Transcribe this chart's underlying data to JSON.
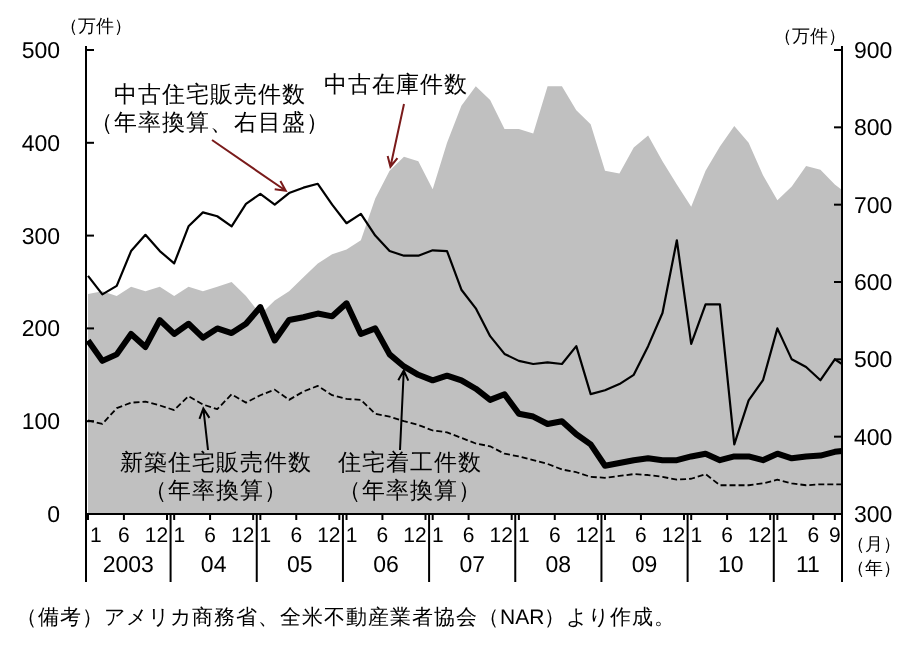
{
  "chart_data": {
    "type": "line",
    "ylabel": "（万件）",
    "y2label": "（万件）",
    "xlabel": "（月）",
    "x": [
      "2003-01",
      "2003-03",
      "2003-05",
      "2003-07",
      "2003-09",
      "2003-11",
      "2004-01",
      "2004-03",
      "2004-05",
      "2004-07",
      "2004-09",
      "2004-11",
      "2005-01",
      "2005-03",
      "2005-05",
      "2005-07",
      "2005-09",
      "2005-11",
      "2006-01",
      "2006-03",
      "2006-05",
      "2006-07",
      "2006-09",
      "2006-11",
      "2007-01",
      "2007-03",
      "2007-05",
      "2007-07",
      "2007-09",
      "2007-11",
      "2008-01",
      "2008-03",
      "2008-05",
      "2008-07",
      "2008-09",
      "2008-11",
      "2009-01",
      "2009-03",
      "2009-05",
      "2009-07",
      "2009-09",
      "2009-11",
      "2010-01",
      "2010-03",
      "2010-05",
      "2010-07",
      "2010-09",
      "2010-11",
      "2011-01",
      "2011-03",
      "2011-05",
      "2011-07",
      "2011-09",
      "2011-10"
    ],
    "series": [
      {
        "name": "中古在庫件数",
        "type": "area",
        "color": "#c0c0c0",
        "values": [
          237,
          240,
          235,
          245,
          240,
          245,
          235,
          245,
          240,
          245,
          250,
          235,
          215,
          230,
          240,
          255,
          270,
          280,
          285,
          295,
          340,
          370,
          385,
          380,
          350,
          400,
          440,
          461,
          446,
          415,
          415,
          410,
          461,
          461,
          435,
          420,
          370,
          367,
          395,
          408,
          380,
          355,
          331,
          370,
          396,
          418,
          400,
          365,
          338,
          353,
          375,
          371,
          355,
          349
        ]
      },
      {
        "name": "中古住宅販売件数（年率換算、右目盛）",
        "axis": "y2",
        "color": "#000000",
        "line_style": "solid",
        "values": [
          608,
          584,
          595,
          640,
          661,
          640,
          624,
          672,
          690,
          685,
          672,
          701,
          714,
          700,
          715,
          722,
          727,
          700,
          676,
          688,
          660,
          640,
          634,
          634,
          641,
          640,
          590,
          566,
          530,
          507,
          498,
          494,
          496,
          494,
          517,
          455,
          460,
          468,
          480,
          517,
          560,
          654,
          520,
          571,
          571,
          390,
          447,
          473,
          540,
          500,
          490,
          473,
          500,
          494
        ]
      },
      {
        "color": "#000000",
        "line_style": "dashed",
        "values": [
          101,
          97,
          114,
          120,
          121,
          117,
          112,
          127,
          118,
          113,
          129,
          120,
          128,
          134,
          123,
          132,
          138,
          128,
          124,
          123,
          108,
          105,
          100,
          96,
          90,
          88,
          82,
          76,
          73,
          65,
          62,
          58,
          54,
          48,
          45,
          40,
          39,
          41,
          43,
          42,
          40,
          37,
          38,
          43,
          31,
          31,
          31,
          33,
          37,
          33,
          31,
          32,
          32,
          32
        ]
      },
      {
        "color": "#000000",
        "line_style": "solid",
        "values": [
          187,
          165,
          172,
          194,
          180,
          209,
          194,
          205,
          190,
          200,
          195,
          205,
          223,
          187,
          209,
          212,
          216,
          213,
          227,
          194,
          200,
          172,
          159,
          150,
          144,
          149,
          144,
          135,
          123,
          129,
          108,
          105,
          97,
          100,
          86,
          75,
          52,
          55,
          58,
          60,
          58,
          58,
          62,
          65,
          58,
          62,
          62,
          58,
          65,
          60,
          62,
          63,
          67,
          68
        ]
      }
    ],
    "xlim": [
      "2003-01",
      "2011-10"
    ],
    "xticks": [
      {
        "value": "2003-01",
        "label": "1"
      },
      {
        "value": "2003-06",
        "label": "6"
      },
      {
        "value": "2003-12",
        "label": "12"
      },
      {
        "value": "2004-01",
        "label": "1"
      },
      {
        "value": "2004-06",
        "label": "6"
      },
      {
        "value": "2004-12",
        "label": "12"
      },
      {
        "value": "2005-01",
        "label": "1"
      },
      {
        "value": "2005-06",
        "label": "6"
      },
      {
        "value": "2005-12",
        "label": "12"
      },
      {
        "value": "2006-01",
        "label": "1"
      },
      {
        "value": "2006-06",
        "label": "6"
      },
      {
        "value": "2006-12",
        "label": "12"
      },
      {
        "value": "2007-01",
        "label": "1"
      },
      {
        "value": "2007-06",
        "label": "6"
      },
      {
        "value": "2007-12",
        "label": "12"
      },
      {
        "value": "2008-01",
        "label": "1"
      },
      {
        "value": "2008-06",
        "label": "6"
      },
      {
        "value": "2008-12",
        "label": "12"
      },
      {
        "value": "2009-01",
        "label": "1"
      },
      {
        "value": "2009-06",
        "label": "6"
      },
      {
        "value": "2009-12",
        "label": "12"
      },
      {
        "value": "2010-01",
        "label": "1"
      },
      {
        "value": "2010-06",
        "label": "6"
      },
      {
        "value": "2010-12",
        "label": "12"
      },
      {
        "value": "2011-01",
        "label": "1"
      },
      {
        "value": "2011-06",
        "label": "6"
      },
      {
        "value": "2011-09",
        "label": "9"
      }
    ],
    "ylim": [
      0,
      500
    ],
    "yticks": [
      0,
      100,
      200,
      300,
      400,
      500
    ],
    "y2lim": [
      300,
      900
    ],
    "y2ticks": [
      300,
      400,
      500,
      600,
      700,
      800,
      900
    ],
    "grid": false,
    "annotations": [
      {
        "text": "新築住宅販売件数（年率換算）",
        "x": "2004-05",
        "y": 118
      },
      {
        "text": "住宅着工件数（年率換算）",
        "x": "2006-09",
        "y": 159
      },
      "2003",
      "04",
      "05",
      "06",
      "07",
      "08",
      "09",
      "10",
      "11",
      "（年）",
      "（備考）アメリカ商務省、全米不動産業者協会（NAR）より作成。"
    ]
  }
}
